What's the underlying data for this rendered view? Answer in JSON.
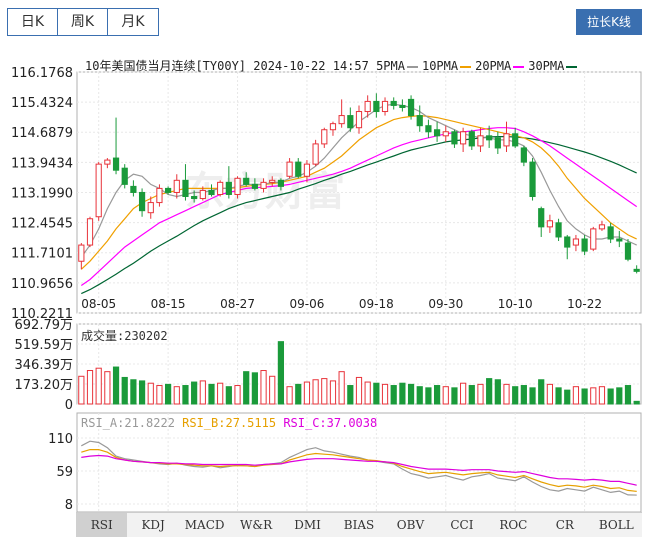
{
  "period_tabs": [
    {
      "label": "日K",
      "active": true
    },
    {
      "label": "周K",
      "active": false
    },
    {
      "label": "月K",
      "active": false
    }
  ],
  "toggle_button": "拉长K线",
  "watermark": "东方财富",
  "main_title": "10年美国债当月连续[TY00Y] 2024-10-22 14:57",
  "ma_legend": [
    {
      "label": "5PMA",
      "color": "#999999"
    },
    {
      "label": "10PMA",
      "color": "#f0a000"
    },
    {
      "label": "20PMA",
      "color": "#ff00ff"
    },
    {
      "label": "30PMA",
      "color": "#006633"
    }
  ],
  "volume_label": "成交量:230202",
  "rsi_labels": [
    {
      "text": "RSI_A:21.8222",
      "color": "#999999"
    },
    {
      "text": "RSI_B:27.5115",
      "color": "#e6a000"
    },
    {
      "text": "RSI_C:37.0038",
      "color": "#dd00dd"
    }
  ],
  "indicator_tabs": [
    {
      "label": "RSI",
      "active": true
    },
    {
      "label": "KDJ",
      "active": false
    },
    {
      "label": "MACD",
      "active": false
    },
    {
      "label": "W&R",
      "active": false
    },
    {
      "label": "DMI",
      "active": false
    },
    {
      "label": "BIAS",
      "active": false
    },
    {
      "label": "OBV",
      "active": false
    },
    {
      "label": "CCI",
      "active": false
    },
    {
      "label": "ROC",
      "active": false
    },
    {
      "label": "CR",
      "active": false
    },
    {
      "label": "BOLL",
      "active": false
    }
  ],
  "colors": {
    "up": "#e8333a",
    "down": "#1a9a3a",
    "border": "#3a6fb0"
  },
  "chart_data": [
    {
      "type": "candlestick",
      "title": "10年美国债当月连续[TY00Y] 2024-10-22 14:57",
      "y_ticks": [
        "116.1768",
        "115.4324",
        "114.6879",
        "113.9434",
        "113.1990",
        "112.4545",
        "111.7101",
        "110.9656",
        "110.2211"
      ],
      "ylim": [
        110.2211,
        116.1768
      ],
      "x_tick_labels": [
        "08-05",
        "08-15",
        "08-27",
        "09-06",
        "09-18",
        "09-30",
        "10-10",
        "10-22"
      ],
      "x_tick_index": [
        2,
        10,
        18,
        26,
        34,
        42,
        50,
        58
      ],
      "candles": [
        {
          "o": 111.5,
          "h": 111.95,
          "l": 111.3,
          "c": 111.9
        },
        {
          "o": 111.9,
          "h": 112.6,
          "l": 111.85,
          "c": 112.55
        },
        {
          "o": 112.6,
          "h": 113.95,
          "l": 112.5,
          "c": 113.9
        },
        {
          "o": 113.9,
          "h": 114.05,
          "l": 113.8,
          "c": 114.0
        },
        {
          "o": 114.05,
          "h": 115.05,
          "l": 113.65,
          "c": 113.75
        },
        {
          "o": 113.8,
          "h": 113.9,
          "l": 113.3,
          "c": 113.4
        },
        {
          "o": 113.35,
          "h": 113.5,
          "l": 113.1,
          "c": 113.2
        },
        {
          "o": 113.2,
          "h": 113.3,
          "l": 112.6,
          "c": 112.75
        },
        {
          "o": 112.7,
          "h": 113.1,
          "l": 112.55,
          "c": 112.95
        },
        {
          "o": 112.95,
          "h": 113.4,
          "l": 112.85,
          "c": 113.3
        },
        {
          "o": 113.3,
          "h": 113.35,
          "l": 113.15,
          "c": 113.2
        },
        {
          "o": 113.2,
          "h": 113.65,
          "l": 113.05,
          "c": 113.5
        },
        {
          "o": 113.5,
          "h": 113.9,
          "l": 113.0,
          "c": 113.1
        },
        {
          "o": 113.1,
          "h": 113.25,
          "l": 112.95,
          "c": 113.05
        },
        {
          "o": 113.05,
          "h": 113.35,
          "l": 113.0,
          "c": 113.25
        },
        {
          "o": 113.25,
          "h": 113.4,
          "l": 113.1,
          "c": 113.15
        },
        {
          "o": 113.15,
          "h": 113.5,
          "l": 113.1,
          "c": 113.45
        },
        {
          "o": 113.45,
          "h": 113.85,
          "l": 113.05,
          "c": 113.15
        },
        {
          "o": 113.15,
          "h": 113.6,
          "l": 113.05,
          "c": 113.55
        },
        {
          "o": 113.55,
          "h": 113.7,
          "l": 113.35,
          "c": 113.4
        },
        {
          "o": 113.4,
          "h": 113.55,
          "l": 113.25,
          "c": 113.3
        },
        {
          "o": 113.3,
          "h": 113.55,
          "l": 113.2,
          "c": 113.45
        },
        {
          "o": 113.45,
          "h": 113.6,
          "l": 113.35,
          "c": 113.5
        },
        {
          "o": 113.5,
          "h": 113.55,
          "l": 113.25,
          "c": 113.35
        },
        {
          "o": 113.6,
          "h": 114.05,
          "l": 113.55,
          "c": 113.95
        },
        {
          "o": 113.95,
          "h": 114.05,
          "l": 113.55,
          "c": 113.6
        },
        {
          "o": 113.6,
          "h": 114.0,
          "l": 113.45,
          "c": 113.9
        },
        {
          "o": 113.9,
          "h": 114.5,
          "l": 113.85,
          "c": 114.4
        },
        {
          "o": 114.4,
          "h": 114.8,
          "l": 114.3,
          "c": 114.75
        },
        {
          "o": 114.75,
          "h": 114.95,
          "l": 114.6,
          "c": 114.9
        },
        {
          "o": 114.9,
          "h": 115.5,
          "l": 114.8,
          "c": 115.1
        },
        {
          "o": 115.1,
          "h": 115.3,
          "l": 114.7,
          "c": 114.8
        },
        {
          "o": 114.8,
          "h": 115.35,
          "l": 114.65,
          "c": 115.2
        },
        {
          "o": 115.2,
          "h": 115.6,
          "l": 115.05,
          "c": 115.45
        },
        {
          "o": 115.45,
          "h": 115.65,
          "l": 115.05,
          "c": 115.2
        },
        {
          "o": 115.2,
          "h": 115.55,
          "l": 115.1,
          "c": 115.45
        },
        {
          "o": 115.45,
          "h": 115.55,
          "l": 115.25,
          "c": 115.35
        },
        {
          "o": 115.35,
          "h": 115.5,
          "l": 115.2,
          "c": 115.3
        },
        {
          "o": 115.5,
          "h": 115.6,
          "l": 115.0,
          "c": 115.1
        },
        {
          "o": 115.1,
          "h": 115.35,
          "l": 114.7,
          "c": 114.85
        },
        {
          "o": 114.85,
          "h": 115.0,
          "l": 114.55,
          "c": 114.7
        },
        {
          "o": 114.75,
          "h": 114.95,
          "l": 114.45,
          "c": 114.6
        },
        {
          "o": 114.6,
          "h": 114.85,
          "l": 114.45,
          "c": 114.7
        },
        {
          "o": 114.7,
          "h": 114.75,
          "l": 114.3,
          "c": 114.4
        },
        {
          "o": 114.4,
          "h": 114.8,
          "l": 114.2,
          "c": 114.7
        },
        {
          "o": 114.7,
          "h": 114.75,
          "l": 114.25,
          "c": 114.35
        },
        {
          "o": 114.35,
          "h": 114.8,
          "l": 114.2,
          "c": 114.6
        },
        {
          "o": 114.6,
          "h": 114.85,
          "l": 114.3,
          "c": 114.5
        },
        {
          "o": 114.55,
          "h": 114.7,
          "l": 114.15,
          "c": 114.3
        },
        {
          "o": 114.35,
          "h": 114.95,
          "l": 114.2,
          "c": 114.65
        },
        {
          "o": 114.65,
          "h": 114.8,
          "l": 114.3,
          "c": 114.35
        },
        {
          "o": 114.3,
          "h": 114.35,
          "l": 113.85,
          "c": 113.95
        },
        {
          "o": 113.95,
          "h": 114.05,
          "l": 113.0,
          "c": 113.1
        },
        {
          "o": 112.8,
          "h": 112.85,
          "l": 112.1,
          "c": 112.35
        },
        {
          "o": 112.35,
          "h": 112.65,
          "l": 112.2,
          "c": 112.5
        },
        {
          "o": 112.45,
          "h": 112.55,
          "l": 112.0,
          "c": 112.1
        },
        {
          "o": 112.1,
          "h": 112.15,
          "l": 111.55,
          "c": 111.85
        },
        {
          "o": 111.9,
          "h": 112.15,
          "l": 111.75,
          "c": 112.05
        },
        {
          "o": 112.05,
          "h": 112.15,
          "l": 111.65,
          "c": 111.75
        },
        {
          "o": 111.8,
          "h": 112.35,
          "l": 111.75,
          "c": 112.3
        },
        {
          "o": 112.3,
          "h": 112.5,
          "l": 112.25,
          "c": 112.4
        },
        {
          "o": 112.35,
          "h": 112.45,
          "l": 111.95,
          "c": 112.05
        },
        {
          "o": 112.05,
          "h": 112.25,
          "l": 111.85,
          "c": 112.0
        },
        {
          "o": 111.95,
          "h": 112.05,
          "l": 111.5,
          "c": 111.55
        },
        {
          "o": 111.3,
          "h": 111.4,
          "l": 111.2,
          "c": 111.25
        }
      ],
      "ma5": [
        111.6,
        111.9,
        112.3,
        112.8,
        113.2,
        113.5,
        113.65,
        113.6,
        113.4,
        113.3,
        113.15,
        113.1,
        113.15,
        113.2,
        113.2,
        113.25,
        113.3,
        113.3,
        113.35,
        113.4,
        113.4,
        113.4,
        113.45,
        113.45,
        113.55,
        113.6,
        113.7,
        113.85,
        114.05,
        114.3,
        114.55,
        114.75,
        114.95,
        115.1,
        115.25,
        115.35,
        115.38,
        115.35,
        115.3,
        115.2,
        115.05,
        114.95,
        114.85,
        114.75,
        114.65,
        114.6,
        114.55,
        114.55,
        114.5,
        114.5,
        114.45,
        114.35,
        114.1,
        113.7,
        113.25,
        112.85,
        112.5,
        112.3,
        112.15,
        112.05,
        112.05,
        112.1,
        112.1,
        112.0,
        111.9
      ],
      "ma10": [
        111.3,
        111.5,
        111.75,
        112.0,
        112.3,
        112.55,
        112.8,
        112.95,
        113.05,
        113.15,
        113.2,
        113.25,
        113.3,
        113.3,
        113.3,
        113.3,
        113.3,
        113.3,
        113.32,
        113.35,
        113.38,
        113.4,
        113.42,
        113.45,
        113.5,
        113.55,
        113.6,
        113.7,
        113.8,
        113.95,
        114.1,
        114.3,
        114.5,
        114.65,
        114.8,
        114.9,
        115.0,
        115.05,
        115.08,
        115.1,
        115.08,
        115.05,
        115.0,
        114.95,
        114.9,
        114.85,
        114.8,
        114.75,
        114.7,
        114.65,
        114.6,
        114.55,
        114.45,
        114.3,
        114.1,
        113.85,
        113.55,
        113.3,
        113.05,
        112.85,
        112.65,
        112.45,
        112.3,
        112.15,
        112.05
      ],
      "ma20": [
        110.9,
        111.05,
        111.25,
        111.45,
        111.65,
        111.85,
        112.0,
        112.15,
        112.3,
        112.45,
        112.55,
        112.65,
        112.75,
        112.85,
        112.95,
        113.05,
        113.15,
        113.2,
        113.25,
        113.3,
        113.32,
        113.33,
        113.35,
        113.37,
        113.4,
        113.45,
        113.5,
        113.55,
        113.6,
        113.65,
        113.72,
        113.8,
        113.9,
        114.0,
        114.1,
        114.2,
        114.3,
        114.38,
        114.45,
        114.5,
        114.55,
        114.6,
        114.65,
        114.68,
        114.7,
        114.72,
        114.75,
        114.78,
        114.8,
        114.8,
        114.78,
        114.7,
        114.6,
        114.48,
        114.35,
        114.2,
        114.05,
        113.9,
        113.75,
        113.6,
        113.45,
        113.3,
        113.15,
        113.0,
        112.85
      ],
      "ma30": [
        110.7,
        110.8,
        110.92,
        111.05,
        111.18,
        111.32,
        111.45,
        111.6,
        111.75,
        111.88,
        112.0,
        112.12,
        112.25,
        112.38,
        112.5,
        112.6,
        112.7,
        112.8,
        112.88,
        112.95,
        113.0,
        113.05,
        113.1,
        113.15,
        113.2,
        113.28,
        113.35,
        113.42,
        113.5,
        113.57,
        113.65,
        113.72,
        113.8,
        113.88,
        113.95,
        114.03,
        114.1,
        114.18,
        114.25,
        114.3,
        114.35,
        114.4,
        114.45,
        114.48,
        114.5,
        114.52,
        114.55,
        114.57,
        114.58,
        114.58,
        114.57,
        114.55,
        114.52,
        114.48,
        114.43,
        114.38,
        114.32,
        114.26,
        114.2,
        114.13,
        114.05,
        113.97,
        113.88,
        113.78,
        113.68
      ]
    },
    {
      "type": "bar",
      "title": "成交量:230202",
      "y_ticks": [
        "692.79万",
        "519.59万",
        "346.39万",
        "173.20万",
        "0"
      ],
      "ylim": [
        0,
        6927900
      ],
      "volumes": [
        2400000,
        2900000,
        3100000,
        2800000,
        3200000,
        2300000,
        2100000,
        2000000,
        1800000,
        1600000,
        1700000,
        1500000,
        1600000,
        1900000,
        2000000,
        1700000,
        1800000,
        1500000,
        1600000,
        2800000,
        2700000,
        2900000,
        2400000,
        5400000,
        1500000,
        1700000,
        1900000,
        2100000,
        2200000,
        2000000,
        2800000,
        1600000,
        2300000,
        1900000,
        1800000,
        1700000,
        1600000,
        1800000,
        1700000,
        1500000,
        1400000,
        1600000,
        1500000,
        1400000,
        1800000,
        1600000,
        1700000,
        2200000,
        2100000,
        1700000,
        1500000,
        1600000,
        1400000,
        2100000,
        1700000,
        1400000,
        1200000,
        1500000,
        1300000,
        1400000,
        1500000,
        1300000,
        1400000,
        1600000,
        230202
      ]
    },
    {
      "type": "line",
      "title": "RSI",
      "y_ticks": [
        "110",
        "59",
        "8"
      ],
      "ylim": [
        8,
        110
      ],
      "series": [
        {
          "name": "RSI_A",
          "color": "#999999",
          "values": [
            98,
            105,
            103,
            95,
            82,
            78,
            76,
            74,
            72,
            70,
            69,
            71,
            68,
            66,
            65,
            67,
            64,
            66,
            68,
            67,
            66,
            69,
            70,
            72,
            80,
            86,
            92,
            95,
            90,
            88,
            85,
            82,
            80,
            76,
            74,
            72,
            70,
            62,
            55,
            52,
            48,
            50,
            52,
            48,
            45,
            50,
            52,
            55,
            48,
            46,
            44,
            50,
            42,
            35,
            30,
            28,
            32,
            30,
            28,
            34,
            30,
            26,
            28,
            22,
            21.8
          ]
        },
        {
          "name": "RSI_B",
          "color": "#e6a000",
          "values": [
            88,
            92,
            92,
            88,
            80,
            76,
            74,
            73,
            72,
            71,
            70,
            70,
            69,
            68,
            67,
            67,
            66,
            67,
            67,
            67,
            66,
            68,
            69,
            70,
            76,
            80,
            84,
            86,
            85,
            84,
            82,
            80,
            78,
            76,
            75,
            73,
            71,
            66,
            62,
            58,
            55,
            56,
            57,
            55,
            53,
            55,
            56,
            57,
            53,
            51,
            49,
            52,
            47,
            42,
            38,
            35,
            37,
            36,
            34,
            37,
            35,
            32,
            33,
            29,
            27.5
          ]
        },
        {
          "name": "RSI_C",
          "color": "#dd00dd",
          "values": [
            80,
            82,
            83,
            82,
            78,
            76,
            74,
            73,
            72,
            72,
            71,
            71,
            70,
            70,
            69,
            69,
            69,
            69,
            69,
            69,
            68,
            69,
            70,
            70,
            73,
            75,
            77,
            78,
            78,
            78,
            77,
            76,
            75,
            74,
            74,
            73,
            72,
            69,
            66,
            64,
            62,
            62,
            62,
            61,
            60,
            61,
            61,
            61,
            59,
            58,
            57,
            58,
            55,
            52,
            49,
            47,
            47,
            46,
            45,
            46,
            45,
            43,
            43,
            40,
            37
          ]
        }
      ]
    }
  ]
}
